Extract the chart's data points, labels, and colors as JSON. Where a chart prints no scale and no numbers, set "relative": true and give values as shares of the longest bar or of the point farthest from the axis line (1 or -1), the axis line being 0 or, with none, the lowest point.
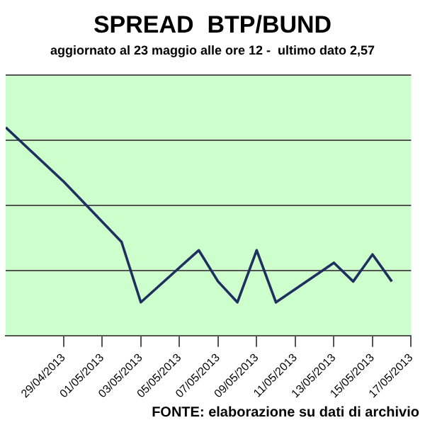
{
  "chart_data": {
    "type": "line",
    "title": "SPREAD  BTP/BUND",
    "subtitle": "aggiornato al 23 maggio alle ore 12 -  ultimo dato 2,57",
    "annotations": [
      "FONTE: elaborazione su dati di archivio"
    ],
    "relative": true,
    "x": [
      "2013-04-26",
      "2013-04-29",
      "2013-05-02",
      "2013-05-03",
      "2013-05-06",
      "2013-05-07",
      "2013-05-08",
      "2013-05-09",
      "2013-05-10",
      "2013-05-13",
      "2013-05-14",
      "2013-05-15",
      "2013-05-16"
    ],
    "series": [
      {
        "color": "#1f2f5f",
        "values": [
          1.0,
          0.74,
          0.45,
          0.16,
          0.41,
          0.26,
          0.16,
          0.41,
          0.16,
          0.35,
          0.26,
          0.39,
          0.26
        ]
      }
    ],
    "xlim": [
      "2013-04-26",
      "2013-05-17"
    ],
    "xticks": [
      {
        "value": "2013-04-29",
        "label": "29/04/2013"
      },
      {
        "value": "2013-05-01",
        "label": "01/05/2013"
      },
      {
        "value": "2013-05-03",
        "label": "03/05/2013"
      },
      {
        "value": "2013-05-05",
        "label": "05/05/2013"
      },
      {
        "value": "2013-05-07",
        "label": "07/05/2013"
      },
      {
        "value": "2013-05-09",
        "label": "09/05/2013"
      },
      {
        "value": "2013-05-11",
        "label": "11/05/2013"
      },
      {
        "value": "2013-05-13",
        "label": "13/05/2013"
      },
      {
        "value": "2013-05-15",
        "label": "15/05/2013"
      },
      {
        "value": "2013-05-17",
        "label": "17/05/2013"
      }
    ],
    "grid": "y",
    "legend": false,
    "marker": "none",
    "line_style": "solid"
  }
}
